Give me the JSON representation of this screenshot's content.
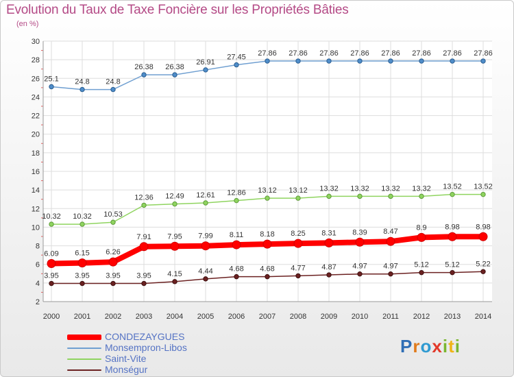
{
  "chart_data": {
    "type": "line",
    "title": "Evolution du Taux de Taxe Foncière sur les Propriétés Bâties",
    "subtitle": "(en %)",
    "x": [
      2000,
      2001,
      2002,
      2003,
      2004,
      2005,
      2006,
      2007,
      2008,
      2009,
      2010,
      2011,
      2012,
      2013,
      2014
    ],
    "ylim": [
      2,
      30
    ],
    "yticks": [
      2,
      4,
      6,
      8,
      10,
      12,
      14,
      16,
      18,
      20,
      22,
      24,
      26,
      28,
      30
    ],
    "grid": true,
    "legend_position": "bottom-left",
    "series": [
      {
        "name": "CONDEZAYGUES",
        "color": "#ff0000",
        "values": [
          6.09,
          6.15,
          6.26,
          7.91,
          7.95,
          7.99,
          8.11,
          8.18,
          8.25,
          8.31,
          8.39,
          8.47,
          8.9,
          8.98,
          8.98
        ]
      },
      {
        "name": "Monsempron-Libos",
        "color": "#6f9fd1",
        "values": [
          25.1,
          24.8,
          24.8,
          26.38,
          26.38,
          26.91,
          27.45,
          27.86,
          27.86,
          27.86,
          27.86,
          27.86,
          27.86,
          27.86,
          27.86
        ]
      },
      {
        "name": "Saint-Vite",
        "color": "#8fd45f",
        "values": [
          10.32,
          10.32,
          10.53,
          12.36,
          12.49,
          12.61,
          12.86,
          13.12,
          13.12,
          13.32,
          13.32,
          13.32,
          13.32,
          13.52,
          13.52
        ]
      },
      {
        "name": "Monségur",
        "color": "#6b2121",
        "values": [
          3.95,
          3.95,
          3.95,
          3.95,
          4.15,
          4.44,
          4.68,
          4.68,
          4.77,
          4.87,
          4.97,
          4.97,
          5.12,
          5.12,
          5.22
        ]
      }
    ]
  },
  "logo": {
    "letters": [
      "P",
      "r",
      "o",
      "x",
      "i",
      "t",
      "i"
    ]
  }
}
